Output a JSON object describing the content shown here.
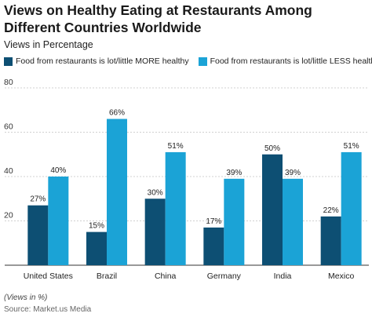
{
  "chart_data": {
    "type": "bar",
    "title": "Views on Healthy Eating at Restaurants Among Different Countries Worldwide",
    "subtitle": "Views in Percentage",
    "categories": [
      "United States",
      "Brazil",
      "China",
      "Germany",
      "India",
      "Mexico"
    ],
    "series": [
      {
        "name": "Food from restaurants is lot/little MORE healthy",
        "color": "#0d4f73",
        "values": [
          27,
          15,
          30,
          17,
          50,
          22
        ]
      },
      {
        "name": "Food from restaurants is lot/little LESS healthy",
        "color": "#1ba3d6",
        "values": [
          40,
          66,
          51,
          39,
          39,
          51
        ]
      }
    ],
    "ylim": [
      0,
      80
    ],
    "yticks": [
      20,
      40,
      60,
      80
    ],
    "value_suffix": "%",
    "grid": true,
    "legend": "top-left"
  },
  "footer": {
    "note": "(Views in %)",
    "source": "Source: Market.us Media"
  }
}
